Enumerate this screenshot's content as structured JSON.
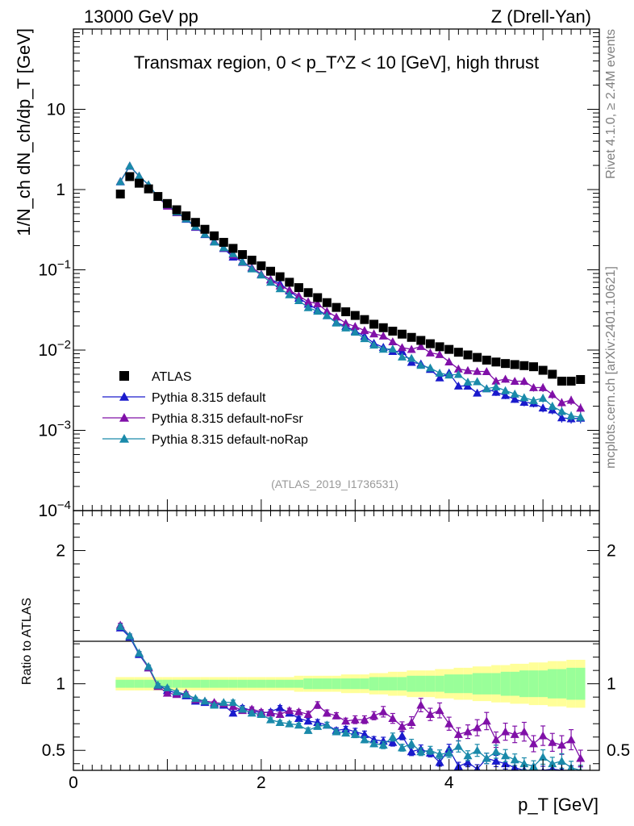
{
  "header": {
    "left": "13000 GeV pp",
    "right": "Z (Drell-Yan)"
  },
  "side_labels": {
    "rivet": "Rivet 4.1.0, ≥ 2.4M events",
    "mcplots": "mcplots.cern.ch [arXiv:2401.10621]"
  },
  "chart_data": {
    "type": "scatter",
    "title": "Transmax region, 0 < p_T^Z < 10 [GeV], high thrust",
    "analysis_id": "(ATLAS_2019_I1736531)",
    "xlabel": "p_T [GeV]",
    "ylabel": "1/N_ch dN_ch/dp_T [GeV]",
    "ratio_ylabel": "Ratio to ATLAS",
    "xlim": [
      0,
      5.6
    ],
    "ylim": [
      0.0001,
      100
    ],
    "ratio_ylim": [
      0.35,
      2.3
    ],
    "x_ticks": [
      "0",
      "2",
      "4"
    ],
    "y_ticks": [
      "10",
      "1",
      "10^-1",
      "10^-2",
      "10^-3",
      "10^-4"
    ],
    "ratio_ticks": [
      "2",
      "1",
      "0.5"
    ],
    "colors": {
      "atlas": "#000000",
      "default": "#1a1acc",
      "noFsr": "#8010a8",
      "noRap": "#1a8aaa",
      "band_stat": "#99ff99",
      "band_tot": "#ffff99"
    },
    "legend": [
      {
        "key": "atlas",
        "label": "ATLAS"
      },
      {
        "key": "default",
        "label": "Pythia 8.315 default"
      },
      {
        "key": "noFsr",
        "label": "Pythia 8.315 default-noFsr"
      },
      {
        "key": "noRap",
        "label": "Pythia 8.315 default-noRap"
      }
    ],
    "x": [
      0.5,
      0.6,
      0.7,
      0.8,
      0.9,
      1.0,
      1.1,
      1.2,
      1.3,
      1.4,
      1.5,
      1.6,
      1.7,
      1.8,
      1.9,
      2.0,
      2.1,
      2.2,
      2.3,
      2.4,
      2.5,
      2.6,
      2.7,
      2.8,
      2.9,
      3.0,
      3.1,
      3.2,
      3.3,
      3.4,
      3.5,
      3.6,
      3.7,
      3.8,
      3.9,
      4.0,
      4.1,
      4.2,
      4.3,
      4.4,
      4.5,
      4.6,
      4.7,
      4.8,
      4.9,
      5.0,
      5.1,
      5.2,
      5.3,
      5.4
    ],
    "atlas": [
      0.88,
      1.45,
      1.2,
      1.02,
      0.82,
      0.67,
      0.56,
      0.47,
      0.39,
      0.32,
      0.265,
      0.22,
      0.185,
      0.155,
      0.132,
      0.112,
      0.096,
      0.082,
      0.07,
      0.06,
      0.052,
      0.045,
      0.039,
      0.034,
      0.03,
      0.027,
      0.024,
      0.021,
      0.019,
      0.0172,
      0.0158,
      0.0144,
      0.0132,
      0.012,
      0.011,
      0.0102,
      0.0094,
      0.0087,
      0.0081,
      0.0075,
      0.0071,
      0.0068,
      0.0066,
      0.0064,
      0.0062,
      0.0056,
      0.005,
      0.0041,
      0.0041,
      0.0043
    ],
    "series": [
      {
        "key": "default",
        "name": "Pythia 8.315 default",
        "ratio": [
          1.42,
          1.35,
          1.22,
          1.12,
          0.99,
          0.95,
          0.93,
          0.91,
          0.87,
          0.86,
          0.85,
          0.84,
          0.78,
          0.82,
          0.8,
          0.78,
          0.79,
          0.82,
          0.78,
          0.74,
          0.72,
          0.71,
          0.69,
          0.65,
          0.66,
          0.64,
          0.62,
          0.58,
          0.57,
          0.56,
          0.61,
          0.49,
          0.51,
          0.48,
          0.41,
          0.51,
          0.38,
          0.41,
          0.36,
          0.44,
          0.42,
          0.4,
          0.37,
          0.35,
          0.35,
          0.34,
          0.36,
          0.35,
          0.34,
          0.33
        ],
        "err": [
          0.01,
          0.01,
          0.01,
          0.01,
          0.01,
          0.01,
          0.01,
          0.01,
          0.01,
          0.01,
          0.01,
          0.01,
          0.02,
          0.02,
          0.02,
          0.02,
          0.02,
          0.02,
          0.02,
          0.02,
          0.03,
          0.03,
          0.03,
          0.03,
          0.03,
          0.04,
          0.04,
          0.04,
          0.05,
          0.05,
          0.05,
          0.06,
          0.06,
          0.06,
          0.07,
          0.07,
          0.08,
          0.08,
          0.09,
          0.09,
          0.1,
          0.1,
          0.1,
          0.11,
          0.11,
          0.12,
          0.12,
          0.13,
          0.13,
          0.14
        ]
      },
      {
        "key": "noFsr",
        "name": "Pythia 8.315 default-noFsr",
        "ratio": [
          1.44,
          1.36,
          1.23,
          1.12,
          0.98,
          0.93,
          0.92,
          0.93,
          0.88,
          0.87,
          0.86,
          0.85,
          0.83,
          0.8,
          0.81,
          0.79,
          0.78,
          0.77,
          0.8,
          0.79,
          0.77,
          0.84,
          0.78,
          0.76,
          0.72,
          0.73,
          0.73,
          0.76,
          0.79,
          0.74,
          0.68,
          0.71,
          0.84,
          0.77,
          0.8,
          0.7,
          0.62,
          0.64,
          0.67,
          0.72,
          0.58,
          0.64,
          0.62,
          0.64,
          0.55,
          0.61,
          0.56,
          0.54,
          0.58,
          0.44
        ],
        "err": [
          0.01,
          0.01,
          0.01,
          0.01,
          0.01,
          0.01,
          0.01,
          0.01,
          0.01,
          0.01,
          0.01,
          0.01,
          0.02,
          0.02,
          0.02,
          0.02,
          0.02,
          0.02,
          0.02,
          0.02,
          0.03,
          0.03,
          0.03,
          0.03,
          0.03,
          0.04,
          0.04,
          0.04,
          0.05,
          0.05,
          0.05,
          0.06,
          0.06,
          0.06,
          0.07,
          0.07,
          0.08,
          0.08,
          0.09,
          0.09,
          0.1,
          0.1,
          0.1,
          0.11,
          0.11,
          0.12,
          0.12,
          0.13,
          0.13,
          0.14
        ]
      },
      {
        "key": "noRap",
        "name": "Pythia 8.315 default-noRap",
        "ratio": [
          1.43,
          1.36,
          1.23,
          1.13,
          0.99,
          0.97,
          0.94,
          0.92,
          0.89,
          0.87,
          0.84,
          0.86,
          0.86,
          0.81,
          0.78,
          0.77,
          0.73,
          0.71,
          0.7,
          0.69,
          0.65,
          0.68,
          0.69,
          0.64,
          0.63,
          0.62,
          0.58,
          0.55,
          0.54,
          0.6,
          0.52,
          0.55,
          0.49,
          0.5,
          0.47,
          0.48,
          0.53,
          0.46,
          0.5,
          0.44,
          0.49,
          0.46,
          0.43,
          0.4,
          0.38,
          0.45,
          0.4,
          0.42,
          0.37,
          0.34
        ],
        "err": [
          0.01,
          0.01,
          0.01,
          0.01,
          0.01,
          0.01,
          0.01,
          0.01,
          0.01,
          0.01,
          0.01,
          0.01,
          0.02,
          0.02,
          0.02,
          0.02,
          0.02,
          0.02,
          0.02,
          0.02,
          0.03,
          0.03,
          0.03,
          0.03,
          0.03,
          0.04,
          0.04,
          0.04,
          0.05,
          0.05,
          0.05,
          0.06,
          0.06,
          0.06,
          0.07,
          0.07,
          0.08,
          0.08,
          0.09,
          0.09,
          0.1,
          0.1,
          0.1,
          0.11,
          0.11,
          0.12,
          0.12,
          0.13,
          0.13,
          0.14
        ]
      }
    ],
    "band_stat": [
      0.03,
      0.03,
      0.03,
      0.03,
      0.03,
      0.03,
      0.03,
      0.03,
      0.03,
      0.03,
      0.03,
      0.03,
      0.03,
      0.03,
      0.03,
      0.03,
      0.03,
      0.03,
      0.03,
      0.03,
      0.04,
      0.04,
      0.04,
      0.04,
      0.04,
      0.04,
      0.04,
      0.05,
      0.05,
      0.05,
      0.05,
      0.06,
      0.06,
      0.06,
      0.06,
      0.07,
      0.07,
      0.07,
      0.08,
      0.08,
      0.08,
      0.09,
      0.09,
      0.1,
      0.1,
      0.1,
      0.11,
      0.11,
      0.12,
      0.12
    ],
    "band_tot": [
      0.05,
      0.05,
      0.05,
      0.05,
      0.05,
      0.05,
      0.05,
      0.05,
      0.05,
      0.05,
      0.05,
      0.05,
      0.05,
      0.05,
      0.05,
      0.05,
      0.05,
      0.05,
      0.05,
      0.06,
      0.06,
      0.06,
      0.06,
      0.06,
      0.07,
      0.07,
      0.07,
      0.08,
      0.08,
      0.09,
      0.09,
      0.1,
      0.1,
      0.1,
      0.11,
      0.11,
      0.12,
      0.12,
      0.13,
      0.13,
      0.14,
      0.14,
      0.15,
      0.15,
      0.16,
      0.16,
      0.17,
      0.17,
      0.18,
      0.18
    ]
  }
}
